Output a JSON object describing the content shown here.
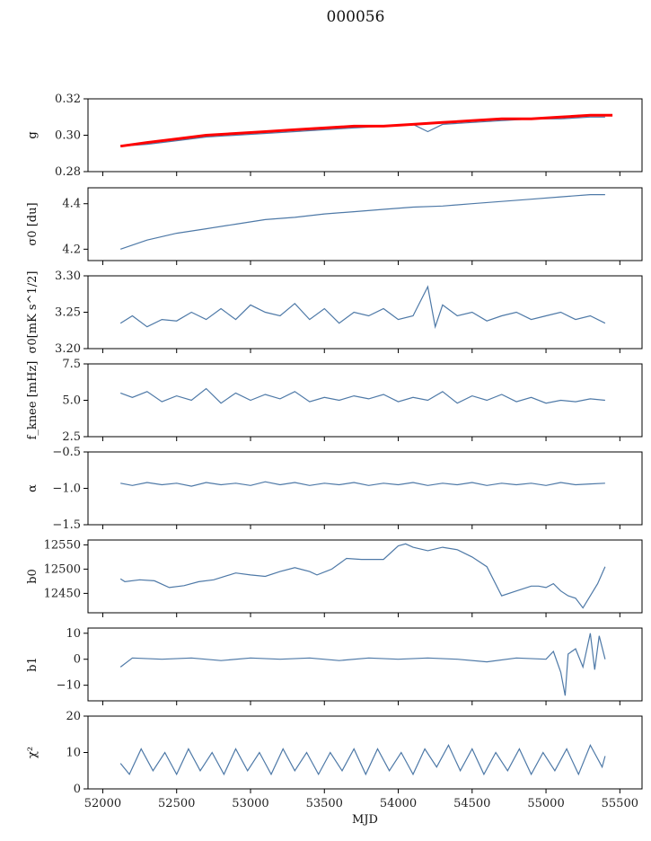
{
  "figure_title": "000056",
  "colors": {
    "series_main": "#4e79a7",
    "series_fit": "#ff0000",
    "axes": "#000000",
    "background": "#ffffff"
  },
  "chart_data": [
    {
      "type": "line",
      "id": "g",
      "ylabel": "g",
      "ylim": [
        0.28,
        0.32
      ],
      "yticks": [
        "0.28",
        "0.30",
        "0.32"
      ],
      "xlim": [
        51900,
        55650
      ],
      "show_xticklabels": false,
      "series": [
        {
          "x": [
            52120,
            52300,
            52500,
            52700,
            52900,
            53100,
            53300,
            53500,
            53700,
            53900,
            54100,
            54200,
            54300,
            54500,
            54700,
            54900,
            55100,
            55300,
            55400
          ],
          "values": [
            0.294,
            0.295,
            0.297,
            0.299,
            0.3,
            0.301,
            0.302,
            0.303,
            0.304,
            0.305,
            0.306,
            0.302,
            0.306,
            0.307,
            0.308,
            0.309,
            0.309,
            0.31,
            0.31
          ]
        },
        {
          "x": [
            52120,
            52300,
            52500,
            52700,
            52900,
            53100,
            53300,
            53500,
            53700,
            53900,
            54100,
            54300,
            54500,
            54700,
            54900,
            55100,
            55300,
            55450
          ],
          "values": [
            0.294,
            0.296,
            0.298,
            0.3,
            0.301,
            0.302,
            0.303,
            0.304,
            0.305,
            0.305,
            0.306,
            0.307,
            0.308,
            0.309,
            0.309,
            0.31,
            0.311,
            0.311
          ]
        }
      ]
    },
    {
      "type": "line",
      "id": "sigma0_du",
      "ylabel": "σ0 [du]",
      "ylim": [
        4.15,
        4.47
      ],
      "yticks": [
        "4.2",
        "4.4"
      ],
      "xlim": [
        51900,
        55650
      ],
      "show_xticklabels": false,
      "series": [
        {
          "x": [
            52120,
            52300,
            52500,
            52700,
            52900,
            53100,
            53300,
            53500,
            53700,
            53900,
            54100,
            54300,
            54500,
            54700,
            54900,
            55100,
            55300,
            55400
          ],
          "values": [
            4.2,
            4.24,
            4.27,
            4.29,
            4.31,
            4.33,
            4.34,
            4.355,
            4.365,
            4.375,
            4.385,
            4.39,
            4.4,
            4.41,
            4.42,
            4.43,
            4.44,
            4.44
          ]
        }
      ]
    },
    {
      "type": "line",
      "id": "sigma0_mks",
      "ylabel": "σ0[mK s^1/2]",
      "ylim": [
        3.2,
        3.3
      ],
      "yticks": [
        "3.20",
        "3.25",
        "3.30"
      ],
      "xlim": [
        51900,
        55650
      ],
      "show_xticklabels": false,
      "series": [
        {
          "x": [
            52120,
            52200,
            52300,
            52400,
            52500,
            52600,
            52700,
            52800,
            52900,
            53000,
            53100,
            53200,
            53300,
            53400,
            53500,
            53600,
            53700,
            53800,
            53900,
            54000,
            54100,
            54200,
            54250,
            54300,
            54400,
            54500,
            54600,
            54700,
            54800,
            54900,
            55000,
            55100,
            55200,
            55300,
            55400
          ],
          "values": [
            3.235,
            3.245,
            3.23,
            3.24,
            3.238,
            3.25,
            3.24,
            3.255,
            3.24,
            3.26,
            3.25,
            3.245,
            3.262,
            3.24,
            3.255,
            3.235,
            3.25,
            3.245,
            3.255,
            3.24,
            3.245,
            3.285,
            3.23,
            3.26,
            3.245,
            3.25,
            3.238,
            3.245,
            3.25,
            3.24,
            3.245,
            3.25,
            3.24,
            3.245,
            3.235
          ]
        }
      ]
    },
    {
      "type": "line",
      "id": "fknee",
      "ylabel": "f_knee [mHz]",
      "ylim": [
        2.5,
        7.5
      ],
      "yticks": [
        "2.5",
        "5.0",
        "7.5"
      ],
      "xlim": [
        51900,
        55650
      ],
      "show_xticklabels": false,
      "series": [
        {
          "x": [
            52120,
            52200,
            52300,
            52400,
            52500,
            52600,
            52700,
            52800,
            52900,
            53000,
            53100,
            53200,
            53300,
            53400,
            53500,
            53600,
            53700,
            53800,
            53900,
            54000,
            54100,
            54200,
            54300,
            54400,
            54500,
            54600,
            54700,
            54800,
            54900,
            55000,
            55100,
            55200,
            55300,
            55400
          ],
          "values": [
            5.5,
            5.2,
            5.6,
            4.9,
            5.3,
            5.0,
            5.8,
            4.8,
            5.5,
            5.0,
            5.4,
            5.1,
            5.6,
            4.9,
            5.2,
            5.0,
            5.3,
            5.1,
            5.4,
            4.9,
            5.2,
            5.0,
            5.6,
            4.8,
            5.3,
            5.0,
            5.4,
            4.9,
            5.2,
            4.8,
            5.0,
            4.9,
            5.1,
            5.0
          ]
        }
      ]
    },
    {
      "type": "line",
      "id": "alpha",
      "ylabel": "α",
      "ylim": [
        -1.5,
        -0.5
      ],
      "yticks": [
        "−1.5",
        "−1.0",
        "−0.5"
      ],
      "xlim": [
        51900,
        55650
      ],
      "show_xticklabels": false,
      "series": [
        {
          "x": [
            52120,
            52200,
            52300,
            52400,
            52500,
            52600,
            52700,
            52800,
            52900,
            53000,
            53100,
            53200,
            53300,
            53400,
            53500,
            53600,
            53700,
            53800,
            53900,
            54000,
            54100,
            54200,
            54300,
            54400,
            54500,
            54600,
            54700,
            54800,
            54900,
            55000,
            55100,
            55200,
            55300,
            55400
          ],
          "values": [
            -0.93,
            -0.96,
            -0.92,
            -0.95,
            -0.93,
            -0.97,
            -0.92,
            -0.95,
            -0.93,
            -0.96,
            -0.91,
            -0.95,
            -0.92,
            -0.96,
            -0.93,
            -0.95,
            -0.92,
            -0.96,
            -0.93,
            -0.95,
            -0.92,
            -0.96,
            -0.93,
            -0.95,
            -0.92,
            -0.96,
            -0.93,
            -0.95,
            -0.93,
            -0.96,
            -0.92,
            -0.95,
            -0.94,
            -0.93
          ]
        }
      ]
    },
    {
      "type": "line",
      "id": "b0",
      "ylabel": "b0",
      "ylim": [
        12410,
        12560
      ],
      "yticks": [
        "12450",
        "12500",
        "12550"
      ],
      "xlim": [
        51900,
        55650
      ],
      "show_xticklabels": false,
      "series": [
        {
          "x": [
            52120,
            52150,
            52250,
            52350,
            52450,
            52550,
            52650,
            52750,
            52900,
            53000,
            53100,
            53200,
            53300,
            53400,
            53450,
            53550,
            53650,
            53750,
            53900,
            54000,
            54050,
            54100,
            54200,
            54300,
            54400,
            54500,
            54600,
            54700,
            54800,
            54900,
            54950,
            55000,
            55050,
            55100,
            55150,
            55200,
            55250,
            55300,
            55350,
            55400
          ],
          "values": [
            12480,
            12474,
            12478,
            12476,
            12462,
            12466,
            12474,
            12478,
            12492,
            12488,
            12485,
            12495,
            12503,
            12495,
            12488,
            12500,
            12522,
            12520,
            12520,
            12548,
            12552,
            12545,
            12538,
            12545,
            12540,
            12525,
            12505,
            12445,
            12455,
            12465,
            12465,
            12462,
            12470,
            12455,
            12445,
            12440,
            12420,
            12445,
            12470,
            12505
          ]
        }
      ]
    },
    {
      "type": "line",
      "id": "b1",
      "ylabel": "b1",
      "ylim": [
        -16,
        12
      ],
      "yticks": [
        "−10",
        "0",
        "10"
      ],
      "xlim": [
        51900,
        55650
      ],
      "show_xticklabels": false,
      "series": [
        {
          "x": [
            52120,
            52200,
            52400,
            52600,
            52800,
            53000,
            53200,
            53400,
            53600,
            53800,
            54000,
            54200,
            54400,
            54600,
            54800,
            55000,
            55050,
            55100,
            55130,
            55150,
            55200,
            55250,
            55300,
            55330,
            55360,
            55400
          ],
          "values": [
            -3,
            0.5,
            0,
            0.5,
            -0.5,
            0.5,
            0,
            0.5,
            -0.5,
            0.5,
            0,
            0.5,
            0,
            -1,
            0.5,
            0,
            3,
            -5,
            -14,
            2,
            4,
            -3,
            10,
            -4,
            9,
            0
          ]
        }
      ]
    },
    {
      "type": "line",
      "id": "chi2",
      "ylabel": "χ²",
      "xlabel": "MJD",
      "ylim": [
        0,
        20
      ],
      "yticks": [
        "0",
        "10",
        "20"
      ],
      "xlim": [
        51900,
        55650
      ],
      "xticks": [
        "52000",
        "52500",
        "53000",
        "53500",
        "54000",
        "54500",
        "55000",
        "55500"
      ],
      "show_xticklabels": true,
      "series": [
        {
          "x": [
            52120,
            52180,
            52260,
            52340,
            52420,
            52500,
            52580,
            52660,
            52740,
            52820,
            52900,
            52980,
            53060,
            53140,
            53220,
            53300,
            53380,
            53460,
            53540,
            53620,
            53700,
            53780,
            53860,
            53940,
            54020,
            54100,
            54180,
            54260,
            54340,
            54420,
            54500,
            54580,
            54660,
            54740,
            54820,
            54900,
            54980,
            55060,
            55140,
            55220,
            55300,
            55380,
            55400
          ],
          "values": [
            7,
            4,
            11,
            5,
            10,
            4,
            11,
            5,
            10,
            4,
            11,
            5,
            10,
            4,
            11,
            5,
            10,
            4,
            10,
            5,
            11,
            4,
            11,
            5,
            10,
            4,
            11,
            6,
            12,
            5,
            11,
            4,
            10,
            5,
            11,
            4,
            10,
            5,
            11,
            4,
            12,
            6,
            9
          ]
        }
      ]
    }
  ]
}
